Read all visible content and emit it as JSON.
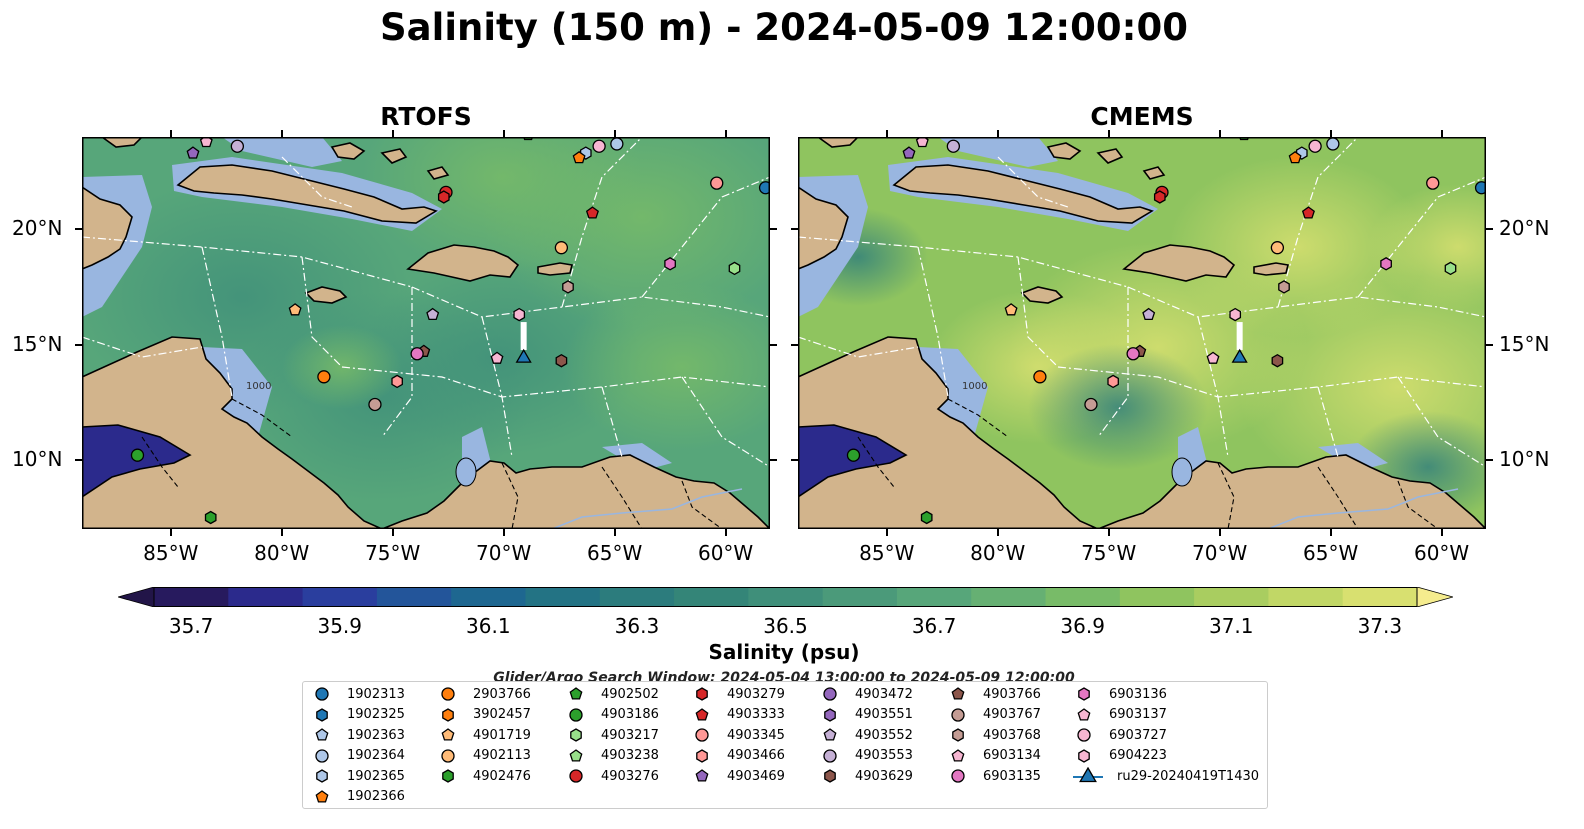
{
  "title": "Salinity (150 m) - 2024-05-09 12:00:00",
  "panels": [
    {
      "title": "RTOFS"
    },
    {
      "title": "CMEMS"
    }
  ],
  "axes": {
    "lon_ticks": [
      "85°W",
      "80°W",
      "75°W",
      "70°W",
      "65°W",
      "60°W"
    ],
    "lat_ticks": [
      "20°N",
      "15°N",
      "10°N"
    ],
    "extent": {
      "lon": [
        -89,
        -58
      ],
      "lat": [
        7,
        24
      ]
    }
  },
  "colorbar": {
    "label": "Salinity (psu)",
    "ticks": [
      "35.7",
      "35.9",
      "36.1",
      "36.3",
      "36.5",
      "36.7",
      "36.9",
      "37.1",
      "37.3"
    ],
    "colors": [
      "#271a5e",
      "#2b2a8c",
      "#2a3e9e",
      "#23559a",
      "#1e6790",
      "#237384",
      "#2c7c7d",
      "#348578",
      "#3f8f7a",
      "#4b9a7a",
      "#57a67a",
      "#66b073",
      "#78bb68",
      "#8fc45f",
      "#a9cd60",
      "#c1d766",
      "#d8e070"
    ],
    "extend_low": "#221548",
    "extend_high": "#f5ec8e"
  },
  "isobath_label": "1000",
  "legend": {
    "title": "Glider/Argo Search Window: 2024-05-04 13:00:00 to 2024-05-09 12:00:00",
    "items": [
      {
        "label": "1902313",
        "color": "#1f77b4",
        "shape": "circle"
      },
      {
        "label": "1902325",
        "color": "#1f77b4",
        "shape": "hexagon"
      },
      {
        "label": "1902363",
        "color": "#aec7e8",
        "shape": "pentagon"
      },
      {
        "label": "1902364",
        "color": "#aec7e8",
        "shape": "circle"
      },
      {
        "label": "1902365",
        "color": "#aec7e8",
        "shape": "hexagon"
      },
      {
        "label": "1902366",
        "color": "#ff7f0e",
        "shape": "pentagon"
      },
      {
        "label": "2903766",
        "color": "#ff7f0e",
        "shape": "circle"
      },
      {
        "label": "3902457",
        "color": "#ff7f0e",
        "shape": "hexagon"
      },
      {
        "label": "4901719",
        "color": "#ffbb78",
        "shape": "pentagon"
      },
      {
        "label": "4902113",
        "color": "#ffbb78",
        "shape": "circle"
      },
      {
        "label": "4902476",
        "color": "#2ca02c",
        "shape": "hexagon"
      },
      {
        "label": "4902502",
        "color": "#2ca02c",
        "shape": "pentagon"
      },
      {
        "label": "4903186",
        "color": "#2ca02c",
        "shape": "circle"
      },
      {
        "label": "4903217",
        "color": "#98df8a",
        "shape": "hexagon"
      },
      {
        "label": "4903238",
        "color": "#98df8a",
        "shape": "pentagon"
      },
      {
        "label": "4903276",
        "color": "#d62728",
        "shape": "circle"
      },
      {
        "label": "4903279",
        "color": "#d62728",
        "shape": "hexagon"
      },
      {
        "label": "4903333",
        "color": "#d62728",
        "shape": "pentagon"
      },
      {
        "label": "4903345",
        "color": "#ff9896",
        "shape": "circle"
      },
      {
        "label": "4903466",
        "color": "#ff9896",
        "shape": "hexagon"
      },
      {
        "label": "4903469",
        "color": "#9467bd",
        "shape": "pentagon"
      },
      {
        "label": "4903472",
        "color": "#9467bd",
        "shape": "circle"
      },
      {
        "label": "4903551",
        "color": "#9467bd",
        "shape": "hexagon"
      },
      {
        "label": "4903552",
        "color": "#c5b0d5",
        "shape": "pentagon"
      },
      {
        "label": "4903553",
        "color": "#c5b0d5",
        "shape": "circle"
      },
      {
        "label": "4903629",
        "color": "#8c564b",
        "shape": "hexagon"
      },
      {
        "label": "4903766",
        "color": "#8c564b",
        "shape": "pentagon"
      },
      {
        "label": "4903767",
        "color": "#c49c94",
        "shape": "circle"
      },
      {
        "label": "4903768",
        "color": "#c49c94",
        "shape": "hexagon"
      },
      {
        "label": "6903134",
        "color": "#f7b6d2",
        "shape": "pentagon"
      },
      {
        "label": "6903135",
        "color": "#e377c2",
        "shape": "circle"
      },
      {
        "label": "6903136",
        "color": "#e377c2",
        "shape": "hexagon"
      },
      {
        "label": "6903137",
        "color": "#f7b6d2",
        "shape": "pentagon"
      },
      {
        "label": "6903727",
        "color": "#f7b6d2",
        "shape": "circle"
      },
      {
        "label": "6904223",
        "color": "#f7b6d2",
        "shape": "hexagon"
      },
      {
        "label": "ru29-20240419T1430",
        "color": "#1f77b4",
        "shape": "triangle-line"
      }
    ]
  },
  "markers": [
    {
      "id": "1902313",
      "lon": -58.2,
      "lat": 21.8
    },
    {
      "id": "1902364",
      "lon": -64.9,
      "lat": 23.7
    },
    {
      "id": "1902365",
      "lon": -66.3,
      "lat": 23.3
    },
    {
      "id": "2903766",
      "lon": -78.1,
      "lat": 13.6
    },
    {
      "id": "1902366",
      "lon": -66.6,
      "lat": 23.1
    },
    {
      "id": "4901719",
      "lon": -79.4,
      "lat": 16.5
    },
    {
      "id": "4902113",
      "lon": -67.4,
      "lat": 19.2
    },
    {
      "id": "4902476",
      "lon": -83.2,
      "lat": 7.5
    },
    {
      "id": "4902502",
      "lon": -68.9,
      "lat": 24.1
    },
    {
      "id": "4903186",
      "lon": -86.5,
      "lat": 10.2
    },
    {
      "id": "4903217",
      "lon": -59.6,
      "lat": 18.3
    },
    {
      "id": "4903276",
      "lon": -72.6,
      "lat": 21.6
    },
    {
      "id": "4903279",
      "lon": -72.7,
      "lat": 21.4
    },
    {
      "id": "4903333",
      "lon": -66.0,
      "lat": 20.7
    },
    {
      "id": "4903345",
      "lon": -60.4,
      "lat": 22.0
    },
    {
      "id": "4903466",
      "lon": -74.8,
      "lat": 13.4
    },
    {
      "id": "4903469",
      "lon": -84.0,
      "lat": 23.3
    },
    {
      "id": "4903552",
      "lon": -73.2,
      "lat": 16.3
    },
    {
      "id": "4903553",
      "lon": -82.0,
      "lat": 23.6
    },
    {
      "id": "4903629",
      "lon": -67.4,
      "lat": 14.3
    },
    {
      "id": "4903766",
      "lon": -73.6,
      "lat": 14.7
    },
    {
      "id": "4903767",
      "lon": -75.8,
      "lat": 12.4
    },
    {
      "id": "4903768",
      "lon": -67.1,
      "lat": 17.5
    },
    {
      "id": "6903134",
      "lon": -83.4,
      "lat": 23.8
    },
    {
      "id": "6903135",
      "lon": -73.9,
      "lat": 14.6
    },
    {
      "id": "6903136",
      "lon": -62.5,
      "lat": 18.5
    },
    {
      "id": "6903137",
      "lon": -70.3,
      "lat": 14.4
    },
    {
      "id": "6903727",
      "lon": -65.7,
      "lat": 23.6
    },
    {
      "id": "6904223",
      "lon": -69.3,
      "lat": 16.3
    },
    {
      "id": "ru29-20240419T1430",
      "lon": -69.1,
      "lat": 14.5
    }
  ]
}
